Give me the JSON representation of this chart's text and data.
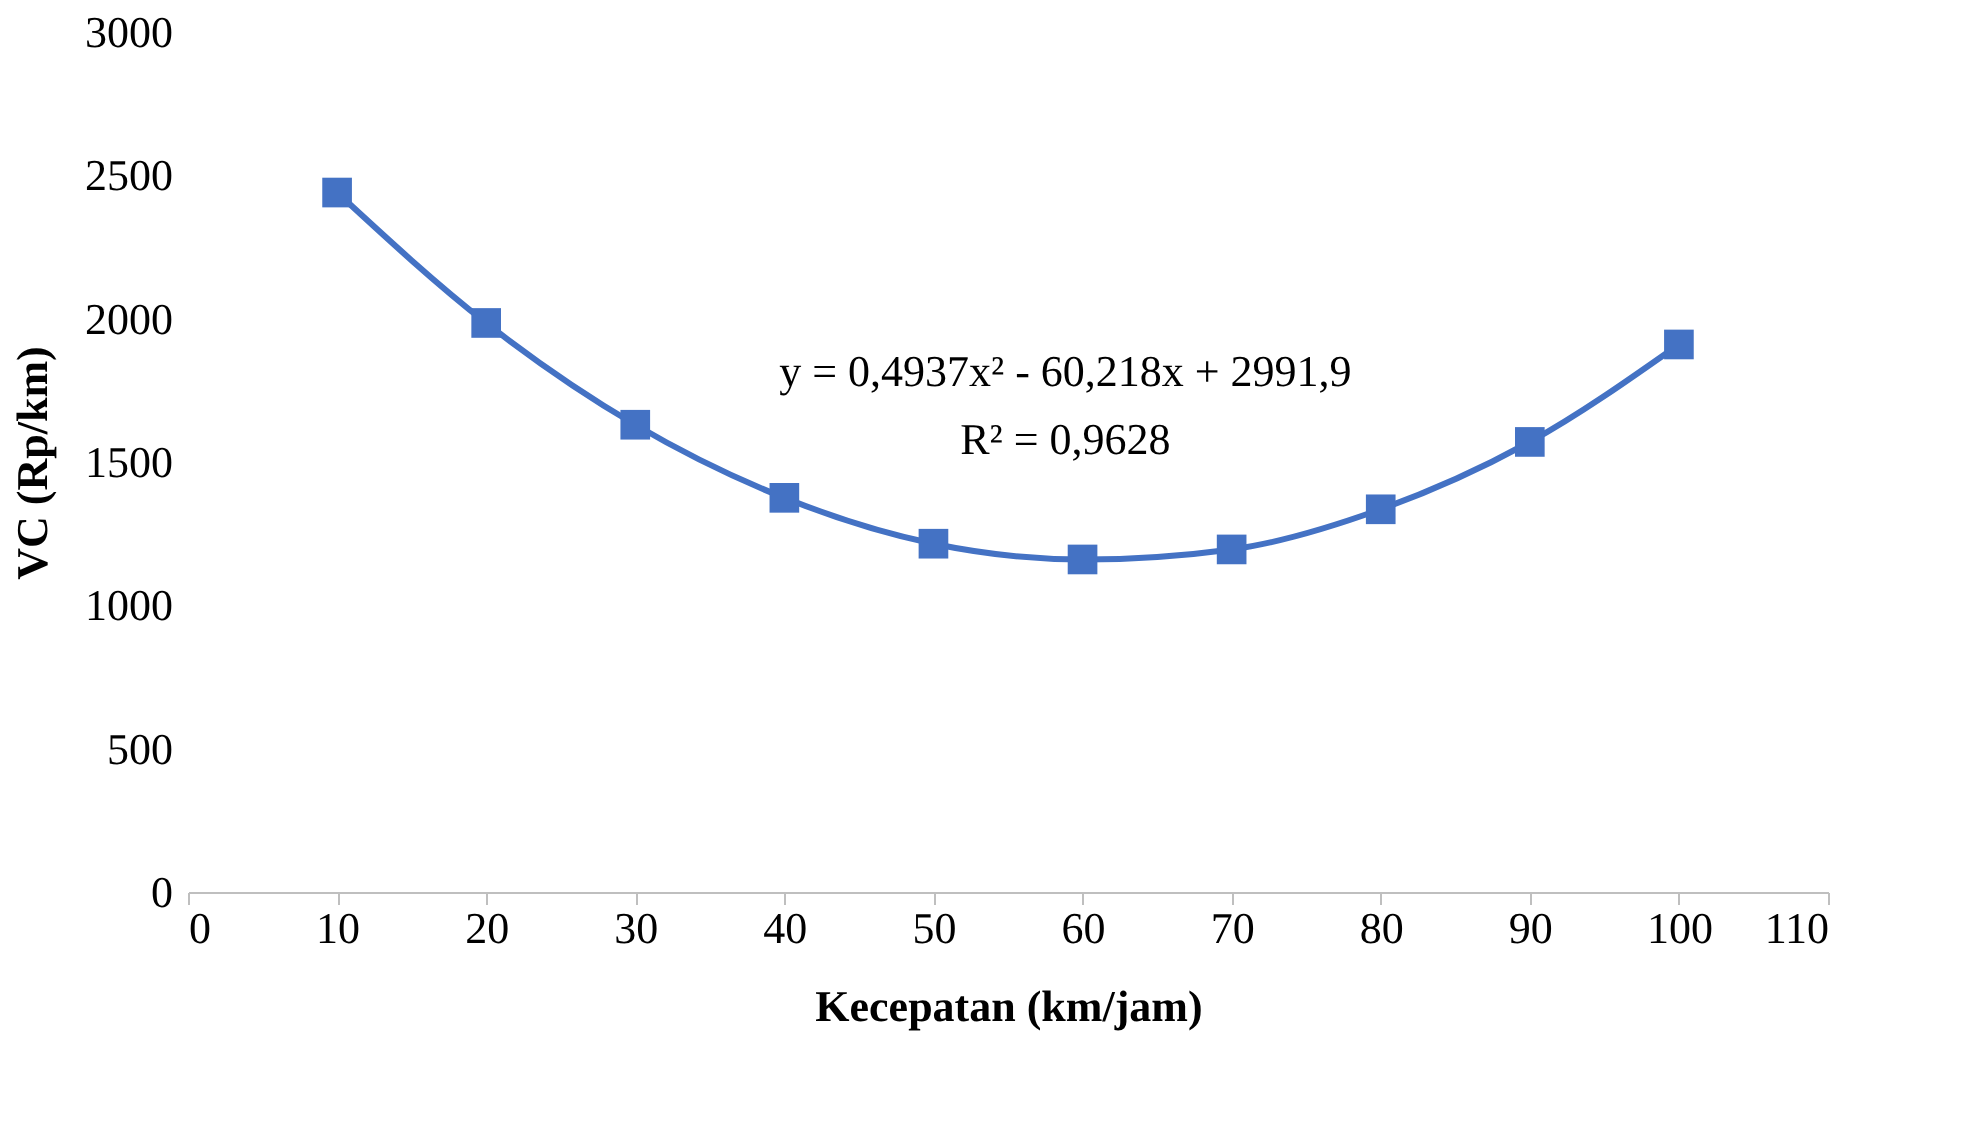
{
  "chart_data": {
    "type": "line",
    "xlabel": "Kecepatan (km/jam)",
    "ylabel": "VC (Rp/km)",
    "x": [
      10,
      20,
      30,
      40,
      50,
      60,
      70,
      80,
      90,
      100
    ],
    "series": [
      {
        "color": "#4472c4",
        "values": [
          2440,
          1985,
          1630,
          1375,
          1215,
          1160,
          1195,
          1335,
          1570,
          1910
        ]
      }
    ],
    "xlim": [
      0,
      110
    ],
    "xticks": [
      0,
      10,
      20,
      30,
      40,
      50,
      60,
      70,
      80,
      90,
      100,
      110
    ],
    "ylim": [
      0,
      3000
    ],
    "yticks": [
      0,
      500,
      1000,
      1500,
      2000,
      2500,
      3000
    ],
    "annotations": [
      "y = 0,4937x² - 60,218x + 2991,9",
      "R² = 0,9628"
    ],
    "marker": "square",
    "line_style": "solid",
    "grid": false
  }
}
